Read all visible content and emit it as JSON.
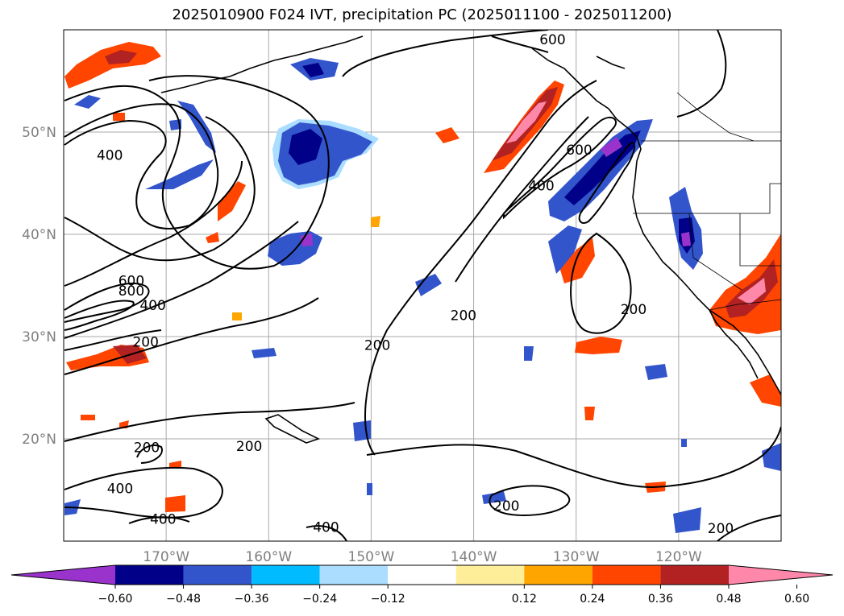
{
  "title": "2025010900 F024 IVT, precipitation PC (2025011100 - 2025011200)",
  "map": {
    "lon_range": [
      -180,
      -110
    ],
    "lat_range": [
      10,
      60
    ],
    "lat_ticks": [
      {
        "value": 50,
        "label": "50°N"
      },
      {
        "value": 40,
        "label": "40°N"
      },
      {
        "value": 30,
        "label": "30°N"
      },
      {
        "value": 20,
        "label": "20°N"
      }
    ],
    "lon_ticks": [
      {
        "value": -170,
        "label": "170°W"
      },
      {
        "value": -160,
        "label": "160°W"
      },
      {
        "value": -150,
        "label": "150°W"
      },
      {
        "value": -140,
        "label": "140°W"
      },
      {
        "value": -130,
        "label": "130°W"
      },
      {
        "value": -120,
        "label": "120°W"
      }
    ],
    "gridlines": true,
    "ivt_contour_labels": [
      {
        "text": "400",
        "lon": -175.5,
        "lat": 47.3
      },
      {
        "text": "600",
        "lon": -173.4,
        "lat": 35.0
      },
      {
        "text": "800",
        "lon": -173.4,
        "lat": 34.0
      },
      {
        "text": "400",
        "lon": -171.3,
        "lat": 32.6
      },
      {
        "text": "200",
        "lon": -172.0,
        "lat": 29.0
      },
      {
        "text": "200",
        "lon": -149.4,
        "lat": 28.7
      },
      {
        "text": "200",
        "lon": -141.0,
        "lat": 31.6
      },
      {
        "text": "400",
        "lon": -133.4,
        "lat": 44.3
      },
      {
        "text": "600",
        "lon": -129.7,
        "lat": 47.8
      },
      {
        "text": "600",
        "lon": -132.3,
        "lat": 58.6
      },
      {
        "text": "200",
        "lon": -124.4,
        "lat": 32.2
      },
      {
        "text": "200",
        "lon": -171.9,
        "lat": 18.7
      },
      {
        "text": "200",
        "lon": -161.9,
        "lat": 18.8
      },
      {
        "text": "400",
        "lon": -174.5,
        "lat": 14.7
      },
      {
        "text": "400",
        "lon": -170.3,
        "lat": 11.7
      },
      {
        "text": "400",
        "lon": -154.4,
        "lat": 10.9
      },
      {
        "text": "200",
        "lon": -136.8,
        "lat": 13.0
      },
      {
        "text": "200",
        "lon": -115.9,
        "lat": 10.8
      }
    ]
  },
  "colorbar": {
    "ticks": [
      "−0.60",
      "−0.48",
      "−0.36",
      "−0.24",
      "−0.12",
      "0.12",
      "0.24",
      "0.36",
      "0.48",
      "0.60"
    ],
    "colors": [
      "#9933cc",
      "#000088",
      "#3355cc",
      "#00bbff",
      "#aaddff",
      "#ffffff",
      "#ffee99",
      "#ffa500",
      "#ff4500",
      "#b22222",
      "#ff88aa"
    ]
  },
  "legend_colors": {
    "coast": "#000000",
    "grid": "#aaaaaa",
    "tick_text": "#7f7f7f"
  }
}
